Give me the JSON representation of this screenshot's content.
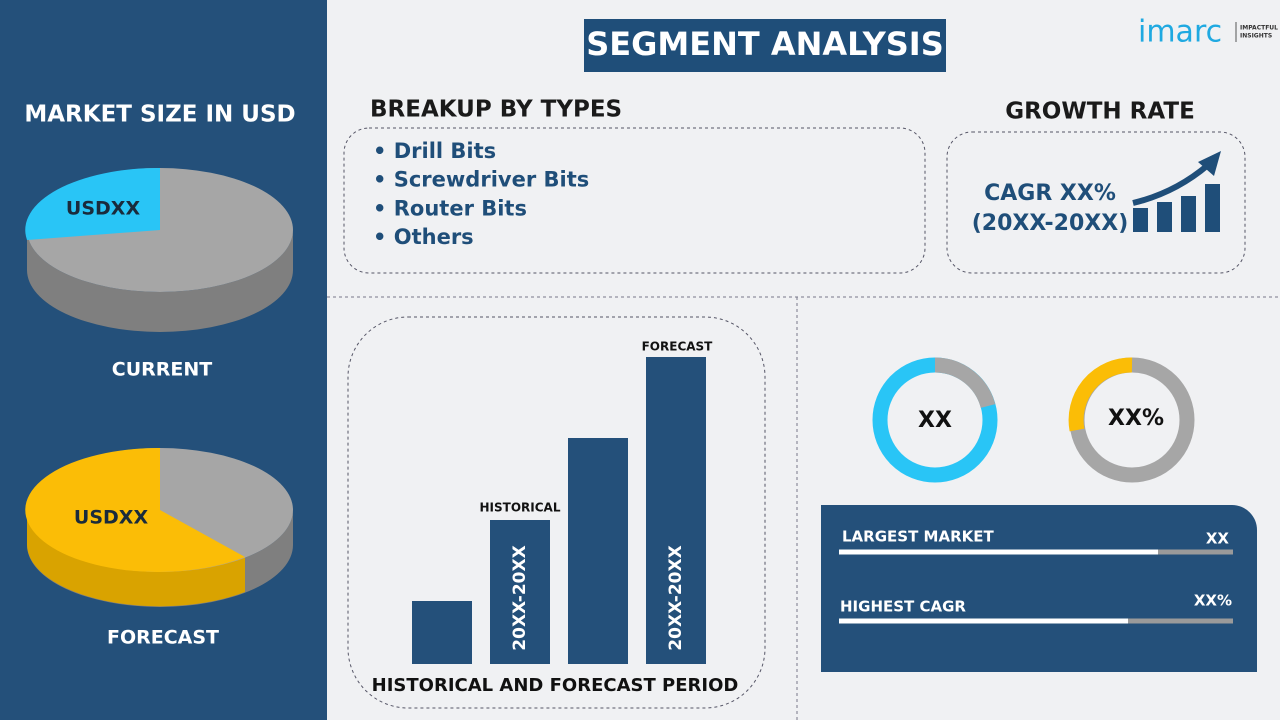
{
  "header": {
    "title": "SEGMENT ANALYSIS",
    "logo": "imarc",
    "logo_tagline_1": "IMPACTFUL",
    "logo_tagline_2": "INSIGHTS"
  },
  "market_size": {
    "title": "MARKET SIZE IN USD",
    "current": {
      "value_label": "USDXX",
      "label": "CURRENT"
    },
    "forecast": {
      "value_label": "USDXX",
      "label": "FORECAST"
    }
  },
  "breakup": {
    "title": "BREAKUP BY TYPES",
    "items": [
      "• Drill Bits",
      "• Screwdriver Bits",
      "• Router Bits",
      "• Others"
    ]
  },
  "growth_rate": {
    "title": "GROWTH RATE",
    "line_1": "CAGR XX%",
    "line_2": "(20XX-20XX)"
  },
  "period_chart": {
    "historical_label": "HISTORICAL",
    "forecast_label": "FORECAST",
    "historical_period": "20XX-20XX",
    "forecast_period": "20XX-20XX",
    "caption": "HISTORICAL AND FORECAST PERIOD"
  },
  "donuts": [
    "XX",
    "XX%"
  ],
  "summary": {
    "rows": [
      {
        "label": "LARGEST MARKET",
        "value": "XX"
      },
      {
        "label": "HIGHEST CAGR",
        "value": "XX%"
      }
    ]
  }
}
